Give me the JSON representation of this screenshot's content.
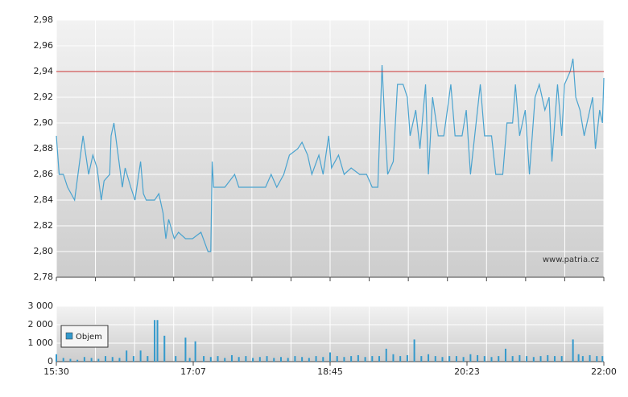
{
  "chart_data": [
    {
      "type": "line",
      "color": "#4aa3cf",
      "xlim": [
        0,
        390
      ],
      "ylim": [
        2.78,
        2.98
      ],
      "yticks": [
        {
          "value": 2.78,
          "label": "2,78"
        },
        {
          "value": 2.8,
          "label": "2,80"
        },
        {
          "value": 2.82,
          "label": "2,82"
        },
        {
          "value": 2.84,
          "label": "2,84"
        },
        {
          "value": 2.86,
          "label": "2,86"
        },
        {
          "value": 2.88,
          "label": "2,88"
        },
        {
          "value": 2.9,
          "label": "2,90"
        },
        {
          "value": 2.92,
          "label": "2,92"
        },
        {
          "value": 2.94,
          "label": "2,94"
        },
        {
          "value": 2.96,
          "label": "2,96"
        },
        {
          "value": 2.98,
          "label": "2,98"
        }
      ],
      "grid": true,
      "reference_line": 2.94,
      "reference_color": "#cc3333",
      "watermark": "www.patria.cz",
      "x": [
        0,
        2,
        5,
        8,
        13,
        19,
        23,
        26,
        29,
        32,
        34,
        38,
        39,
        41,
        44,
        47,
        49,
        53,
        56,
        60,
        62,
        64,
        70,
        73,
        76,
        78,
        80,
        84,
        87,
        92,
        97,
        103,
        108,
        110,
        111,
        112,
        120,
        127,
        130,
        138,
        149,
        153,
        157,
        162,
        166,
        172,
        175,
        179,
        182,
        187,
        190,
        194,
        196,
        201,
        205,
        210,
        216,
        221,
        225,
        229,
        232,
        234,
        236,
        240,
        243,
        247,
        250,
        252,
        256,
        259,
        263,
        265,
        268,
        272,
        276,
        281,
        284,
        289,
        292,
        295,
        298,
        302,
        305,
        310,
        313,
        318,
        321,
        325,
        327,
        330,
        334,
        337,
        341,
        344,
        348,
        351,
        353,
        357,
        360,
        362,
        366,
        368,
        370,
        373,
        376,
        380,
        382,
        384,
        387,
        389,
        390
      ],
      "values": [
        2.89,
        2.86,
        2.86,
        2.85,
        2.84,
        2.89,
        2.86,
        2.875,
        2.865,
        2.84,
        2.855,
        2.86,
        2.89,
        2.9,
        2.875,
        2.85,
        2.865,
        2.85,
        2.84,
        2.87,
        2.845,
        2.84,
        2.84,
        2.845,
        2.83,
        2.81,
        2.825,
        2.81,
        2.815,
        2.81,
        2.81,
        2.815,
        2.8,
        2.8,
        2.87,
        2.85,
        2.85,
        2.86,
        2.85,
        2.85,
        2.85,
        2.86,
        2.85,
        2.86,
        2.875,
        2.88,
        2.885,
        2.875,
        2.86,
        2.875,
        2.86,
        2.89,
        2.865,
        2.875,
        2.86,
        2.865,
        2.86,
        2.86,
        2.85,
        2.85,
        2.945,
        2.9,
        2.86,
        2.87,
        2.93,
        2.93,
        2.92,
        2.89,
        2.91,
        2.88,
        2.93,
        2.86,
        2.92,
        2.89,
        2.89,
        2.93,
        2.89,
        2.89,
        2.91,
        2.86,
        2.89,
        2.93,
        2.89,
        2.89,
        2.86,
        2.86,
        2.9,
        2.9,
        2.93,
        2.89,
        2.91,
        2.86,
        2.92,
        2.93,
        2.91,
        2.92,
        2.87,
        2.93,
        2.89,
        2.93,
        2.94,
        2.95,
        2.92,
        2.91,
        2.89,
        2.91,
        2.92,
        2.88,
        2.91,
        2.9,
        2.935
      ]
    },
    {
      "type": "bar",
      "color": "#3399cc",
      "xlim": [
        0,
        390
      ],
      "ylim": [
        0,
        3000
      ],
      "yticks": [
        0,
        {
          "value": 1000,
          "label": "1 000"
        },
        {
          "value": 2000,
          "label": "2 000"
        },
        {
          "value": 3000,
          "label": "3 000"
        }
      ],
      "xticks": [
        {
          "value": 0,
          "label": "15:30"
        },
        {
          "value": 97.5,
          "label": "17:07"
        },
        {
          "value": 195,
          "label": "18:45"
        },
        {
          "value": 292.5,
          "label": "20:23"
        },
        {
          "value": 390,
          "label": "22:00"
        }
      ],
      "grid": true,
      "legend": "top-left",
      "name": "Objem",
      "x": [
        0,
        5,
        10,
        15,
        20,
        25,
        30,
        35,
        40,
        45,
        50,
        55,
        60,
        65,
        70,
        72,
        77,
        85,
        92,
        95,
        99,
        105,
        110,
        115,
        120,
        125,
        130,
        135,
        140,
        145,
        150,
        155,
        160,
        165,
        170,
        175,
        180,
        185,
        190,
        195,
        200,
        205,
        210,
        215,
        220,
        225,
        230,
        235,
        240,
        245,
        250,
        255,
        260,
        265,
        270,
        275,
        280,
        285,
        290,
        295,
        300,
        305,
        310,
        315,
        320,
        325,
        330,
        335,
        340,
        345,
        350,
        355,
        360,
        368,
        372,
        375,
        380,
        385,
        389
      ],
      "values": [
        400,
        200,
        150,
        100,
        250,
        200,
        150,
        300,
        250,
        200,
        600,
        300,
        600,
        300,
        2250,
        2250,
        1400,
        300,
        1300,
        200,
        1100,
        300,
        250,
        300,
        200,
        350,
        250,
        300,
        200,
        250,
        300,
        200,
        250,
        200,
        300,
        250,
        200,
        300,
        250,
        500,
        300,
        250,
        300,
        350,
        250,
        300,
        300,
        700,
        400,
        300,
        350,
        1200,
        300,
        400,
        300,
        250,
        300,
        300,
        250,
        400,
        350,
        300,
        250,
        300,
        700,
        300,
        350,
        300,
        250,
        300,
        350,
        300,
        300,
        1200,
        400,
        300,
        350,
        300,
        300
      ]
    }
  ]
}
